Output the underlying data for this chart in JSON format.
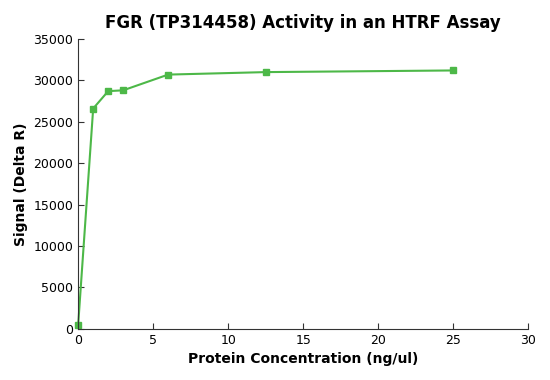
{
  "title": "FGR (TP314458) Activity in an HTRF Assay",
  "xlabel": "Protein Concentration (ng/ul)",
  "ylabel": "Signal (Delta R)",
  "x_values": [
    0,
    1,
    2,
    3,
    6,
    12.5,
    25
  ],
  "y_values": [
    500,
    26600,
    28700,
    28800,
    30700,
    31000,
    31200
  ],
  "line_color": "#4db848",
  "marker_color": "#4db848",
  "marker": "s",
  "markersize": 5,
  "linewidth": 1.5,
  "xlim": [
    0,
    30
  ],
  "ylim": [
    0,
    35000
  ],
  "xticks": [
    0,
    5,
    10,
    15,
    20,
    25,
    30
  ],
  "yticks": [
    0,
    5000,
    10000,
    15000,
    20000,
    25000,
    30000,
    35000
  ],
  "title_fontsize": 12,
  "label_fontsize": 10,
  "tick_fontsize": 9,
  "background_color": "#ffffff",
  "figure_width": 5.5,
  "figure_height": 3.8
}
